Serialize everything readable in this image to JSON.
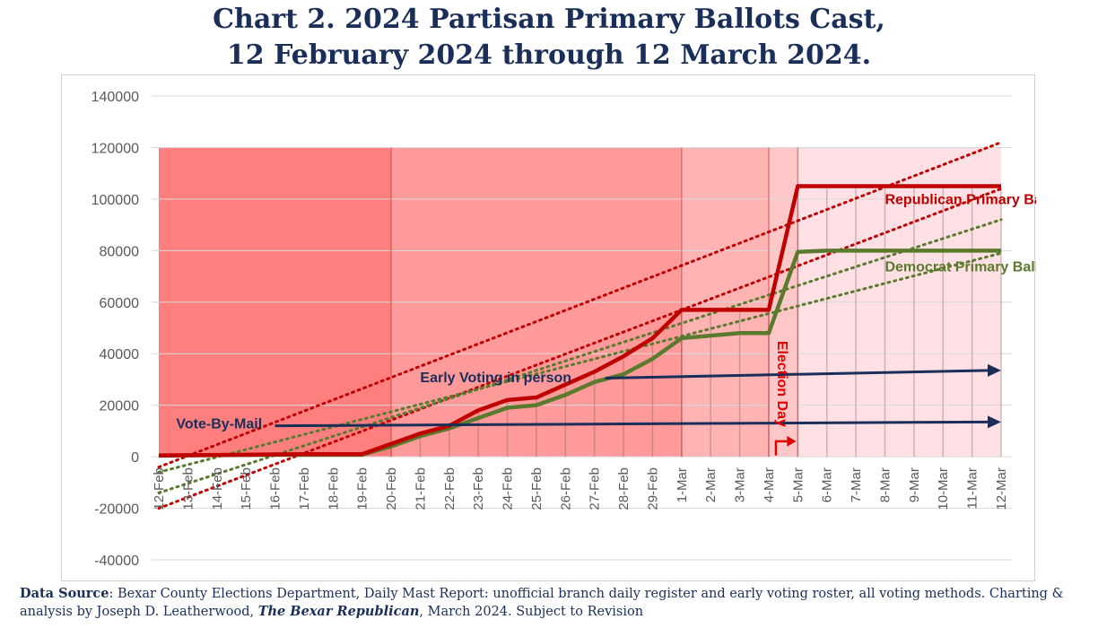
{
  "title": {
    "line1": "Chart 2. 2024 Partisan Primary Ballots Cast,",
    "line2": "12 February 2024 through 12 March 2024."
  },
  "footer": {
    "label": "Data Source",
    "text1": ": Bexar County Elections Department, Daily Mast Report: unofficial branch daily register and early voting roster, all voting methods. Charting & analysis by Joseph D. Leatherwood, ",
    "publication": "The Bexar Republican",
    "text2": ", March 2024. Subject to Revision"
  },
  "chart_data": {
    "type": "line",
    "categories": [
      "12-Feb",
      "13-Feb",
      "14-Feb",
      "15-Feb",
      "16-Feb",
      "17-Feb",
      "18-Feb",
      "19-Feb",
      "20-Feb",
      "21-Feb",
      "22-Feb",
      "23-Feb",
      "24-Feb",
      "25-Feb",
      "26-Feb",
      "27-Feb",
      "28-Feb",
      "29-Feb",
      "1-Mar",
      "2-Mar",
      "3-Mar",
      "4-Mar",
      "5-Mar",
      "6-Mar",
      "7-Mar",
      "8-Mar",
      "9-Mar",
      "10-Mar",
      "11-Mar",
      "12-Mar"
    ],
    "ylim": [
      -40000,
      140000
    ],
    "yticks": [
      140000,
      120000,
      100000,
      80000,
      60000,
      40000,
      20000,
      0,
      -20000,
      -40000
    ],
    "grid": true,
    "series": [
      {
        "name": "Republican Primary Ballots Cast",
        "color": "#c00000",
        "values": [
          500,
          600,
          700,
          800,
          900,
          1000,
          1000,
          1000,
          5000,
          9000,
          12000,
          18000,
          22000,
          23000,
          28000,
          33000,
          39000,
          46000,
          57000,
          57000,
          57000,
          57000,
          105000,
          105000,
          105000,
          105000,
          105000,
          105000,
          105000,
          105000
        ],
        "trendline": {
          "start": -20000,
          "end": 104000
        }
      },
      {
        "name": "Democrat Primary Ballots Cast",
        "color": "#5a7a2e",
        "values": [
          400,
          500,
          600,
          700,
          800,
          800,
          800,
          800,
          4000,
          8000,
          11000,
          15000,
          19000,
          20000,
          24000,
          29000,
          32000,
          38000,
          46000,
          47000,
          48000,
          48000,
          79500,
          80000,
          80000,
          80000,
          80000,
          80000,
          80000,
          80000
        ],
        "trendline": {
          "start": -14000,
          "end": 92000
        }
      }
    ],
    "extra_trendlines": [
      {
        "color": "#c00000",
        "start": -4000,
        "end": 122000
      },
      {
        "color": "#5a7a2e",
        "start": -6000,
        "end": 79000
      }
    ],
    "shaded_regions": [
      {
        "from": "12-Feb",
        "to": "20-Feb",
        "color": "#ff7f7f"
      },
      {
        "from": "20-Feb",
        "to": "1-Mar",
        "color": "#ff9a9a"
      },
      {
        "from": "1-Mar",
        "to": "4-Mar",
        "color": "#ffb3b3"
      },
      {
        "from": "4-Mar",
        "to": "5-Mar",
        "color": "#ffc7c7"
      },
      {
        "from": "5-Mar",
        "to": "12-Mar",
        "color": "#ffe0e4"
      }
    ],
    "region_top_value": 120000,
    "annotations": {
      "vote_by_mail": {
        "text": "Vote-By-Mail",
        "value_start": 12000,
        "value_end": 13500
      },
      "early_voting": {
        "text": "Early Voting in person",
        "value_start": 30500,
        "value_end": 33500
      },
      "election_day": {
        "text": "Election Day"
      },
      "republican_label": "Republican Primary Ballots Cast",
      "democrat_label": "Democrat Primary Ballots Cast"
    }
  }
}
